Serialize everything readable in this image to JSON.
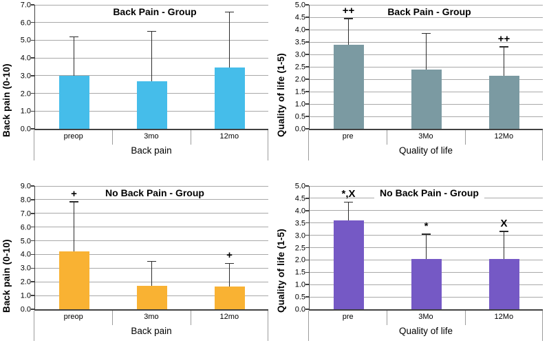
{
  "figure_background": "#ffffff",
  "colors": {
    "gridline": "#a8a8a8",
    "axis_line": "#404040",
    "error_bar": "#2b2b2b",
    "category_separator": "#9b9b9b"
  },
  "chart_data": [
    {
      "type": "bar",
      "title": "Back Pain - Group",
      "ylabel": "Back pain (0-10)",
      "xlabel": "Back pain",
      "categories": [
        "preop",
        "3mo",
        "12mo"
      ],
      "values": [
        3.0,
        2.7,
        3.45
      ],
      "error_tops": [
        5.2,
        5.5,
        6.6
      ],
      "annotations": [
        "",
        "",
        ""
      ],
      "ylim": [
        0,
        7
      ],
      "ytick_step": 1.0,
      "bar_color": "#45bdea",
      "grid": "horizontal"
    },
    {
      "type": "bar",
      "title": "Back Pain - Group",
      "ylabel": "Quality of life (1-5)",
      "xlabel": "Quality of life",
      "categories": [
        "pre",
        "3Mo",
        "12Mo"
      ],
      "values": [
        3.4,
        2.4,
        2.15
      ],
      "error_tops": [
        4.45,
        3.85,
        3.3
      ],
      "annotations": [
        "++",
        "",
        "++"
      ],
      "ylim": [
        0,
        5
      ],
      "ytick_step": 0.5,
      "bar_color": "#7b9aa2",
      "grid": "horizontal"
    },
    {
      "type": "bar",
      "title": "No Back Pain - Group",
      "ylabel": "Back pain (0-10)",
      "xlabel": "Back pain",
      "categories": [
        "preop",
        "3mo",
        "12mo"
      ],
      "values": [
        4.2,
        1.7,
        1.65
      ],
      "error_tops": [
        7.85,
        3.5,
        3.35
      ],
      "annotations": [
        "+",
        "",
        "+"
      ],
      "ylim": [
        0,
        9
      ],
      "ytick_step": 1.0,
      "bar_color": "#f9b233",
      "grid": "horizontal"
    },
    {
      "type": "bar",
      "title": "No Back Pain - Group",
      "ylabel": "Quality of life (1-5)",
      "xlabel": "Quality of life",
      "categories": [
        "pre",
        "3Mo",
        "12Mo"
      ],
      "values": [
        3.6,
        2.05,
        2.05
      ],
      "error_tops": [
        4.35,
        3.05,
        3.15
      ],
      "annotations": [
        "*,X",
        "*",
        "X"
      ],
      "ylim": [
        0,
        5
      ],
      "ytick_step": 0.5,
      "bar_color": "#7559c5",
      "grid": "horizontal"
    }
  ]
}
